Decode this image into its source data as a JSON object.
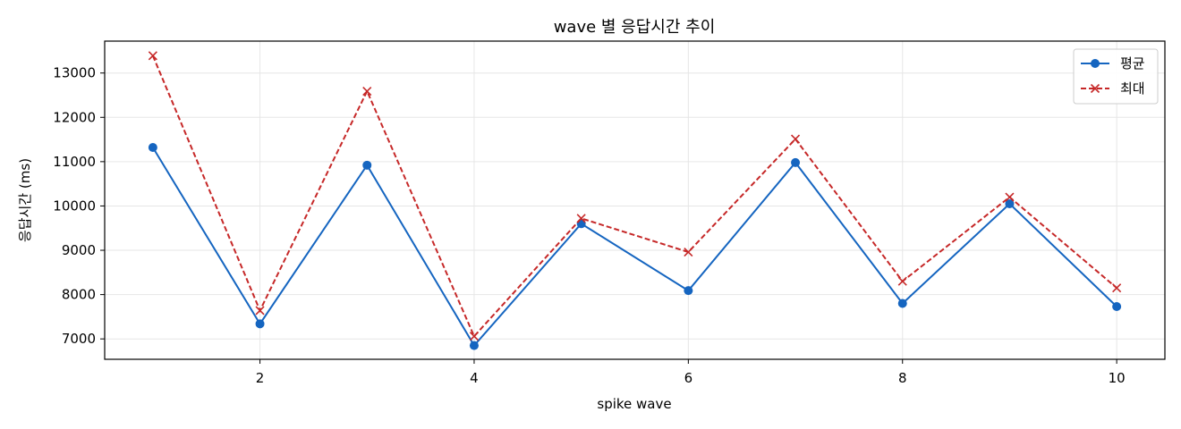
{
  "chart_data": {
    "type": "line",
    "title": "wave 별 응답시간 추이",
    "xlabel": "spike wave",
    "ylabel": "응답시간 (ms)",
    "x": [
      1,
      2,
      3,
      4,
      5,
      6,
      7,
      8,
      9,
      10
    ],
    "xlim": [
      0.55,
      10.45
    ],
    "ylim": [
      6540,
      13720
    ],
    "xticks": [
      2,
      4,
      6,
      8,
      10
    ],
    "yticks": [
      7000,
      8000,
      9000,
      10000,
      11000,
      12000,
      13000
    ],
    "grid": true,
    "legend_position": "top-right",
    "series": [
      {
        "name": "평균",
        "values": [
          11320,
          7340,
          10920,
          6850,
          9600,
          8090,
          10980,
          7800,
          10050,
          7730
        ],
        "color": "#1565c0",
        "line_style": "solid",
        "marker": "circle"
      },
      {
        "name": "최대",
        "values": [
          13390,
          7640,
          12590,
          7060,
          9720,
          8960,
          11510,
          8300,
          10200,
          8150
        ],
        "color": "#c62828",
        "line_style": "dashed",
        "marker": "x"
      }
    ]
  }
}
